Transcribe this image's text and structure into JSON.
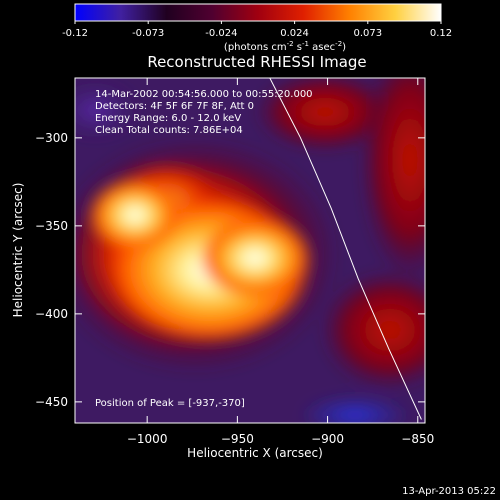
{
  "colorbar": {
    "ticks": [
      "-0.12",
      "-0.073",
      "-0.024",
      "0.024",
      "0.073",
      "0.12"
    ],
    "unit_html": "(photons cm<tspan dy='-4' font-size='7'>-2</tspan><tspan dy='4'> s</tspan><tspan dy='-4' font-size='7'>-1</tspan><tspan dy='4'> asec</tspan><tspan dy='-4' font-size='7'>-2</tspan><tspan dy='4'>)</tspan>",
    "stops": [
      "#0000ff",
      "#4020a0",
      "#200020",
      "#500030",
      "#a00010",
      "#e02000",
      "#ff8000",
      "#ffd040",
      "#ffffff"
    ]
  },
  "chart_data": {
    "type": "heatmap",
    "title": "Reconstructed RHESSI Image",
    "xlabel": "Heliocentric X (arcsec)",
    "ylabel": "Heliocentric Y (arcsec)",
    "xlim": [
      -1040,
      -846
    ],
    "ylim": [
      -462,
      -266
    ],
    "xticks": [
      -1000,
      -950,
      -900,
      -850
    ],
    "xtick_labels": [
      "−1000",
      "−950",
      "−900",
      "−850"
    ],
    "yticks": [
      -300,
      -350,
      -400,
      -450
    ],
    "ytick_labels": [
      "−300",
      "−350",
      "−400",
      "−450"
    ],
    "colorbar_range": [
      -0.12,
      0.12
    ],
    "peak": [
      -937,
      -370
    ],
    "info_lines": [
      "14-Mar-2002 00:54:56.000 to 00:55:20.000",
      "Detectors: 4F 5F 6F 7F 8F, Att 0",
      "Energy Range: 6.0 - 12.0 keV",
      "Clean     Total counts: 7.86E+04"
    ],
    "peak_label": "Position of Peak = [-937,-370]",
    "limb": [
      [
        -932,
        -266
      ],
      [
        -915,
        -300
      ],
      [
        -898,
        -340
      ],
      [
        -883,
        -380
      ],
      [
        -866,
        -420
      ],
      [
        -848,
        -460
      ]
    ]
  },
  "footer": {
    "timestamp": "13-Apr-2013 05:22"
  }
}
